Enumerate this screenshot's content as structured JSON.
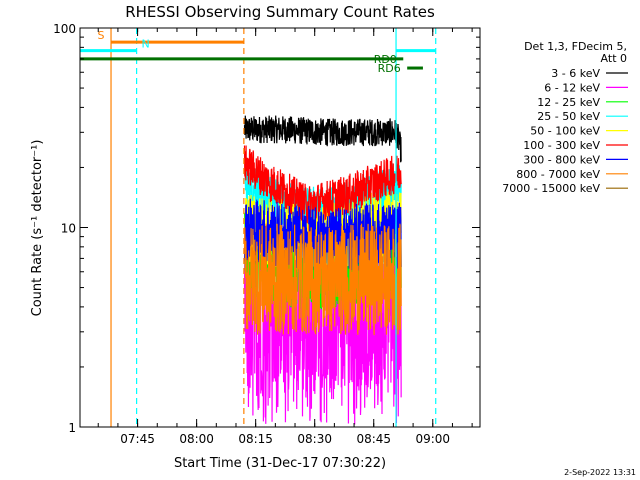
{
  "chart_data": {
    "type": "line",
    "title": "RHESSI Observing Summary Count Rates",
    "xlabel": "Start Time (31-Dec-17 07:30:22)",
    "ylabel": "Count Rate (s⁻¹ detector⁻¹)",
    "y_scale": "log",
    "ylim": [
      1,
      100
    ],
    "xlim": [
      "07:30:22",
      "09:12:00"
    ],
    "x_ticks": [
      "07:45",
      "08:00",
      "08:15",
      "08:30",
      "08:45",
      "09:00"
    ],
    "y_ticks": [
      "1",
      "10",
      "100"
    ],
    "legend_header": [
      "Det 1,3, FDecim 5,",
      "Att 0"
    ],
    "legend_position": "right",
    "data_start": "08:12:10",
    "data_end": "08:52:00",
    "series": [
      {
        "name": "3 - 6 keV",
        "color": "#000000",
        "profile": [
          [
            0,
            31
          ],
          [
            0.25,
            31
          ],
          [
            0.5,
            30
          ],
          [
            0.75,
            30
          ],
          [
            0.97,
            30
          ],
          [
            1,
            24
          ]
        ],
        "spread": 0.07
      },
      {
        "name": "6 - 12 keV",
        "color": "#ff00ff",
        "profile": [
          [
            0,
            3.8
          ],
          [
            0.5,
            3.8
          ],
          [
            1,
            3.8
          ]
        ],
        "spread": 0.35
      },
      {
        "name": "12 - 25 keV",
        "color": "#00ff00",
        "profile": [
          [
            0,
            7.5
          ],
          [
            0.2,
            6.5
          ],
          [
            0.45,
            6.0
          ],
          [
            0.7,
            6.5
          ],
          [
            1,
            7.2
          ]
        ],
        "spread": 0.2
      },
      {
        "name": "25 - 50 keV",
        "color": "#00ffff",
        "profile": [
          [
            0,
            16
          ],
          [
            0.15,
            14
          ],
          [
            0.4,
            12
          ],
          [
            0.7,
            13
          ],
          [
            0.95,
            16
          ],
          [
            1,
            16
          ]
        ],
        "spread": 0.12
      },
      {
        "name": "50 - 100 keV",
        "color": "#ffff00",
        "profile": [
          [
            0,
            10
          ],
          [
            0.3,
            9
          ],
          [
            0.5,
            8.5
          ],
          [
            0.7,
            9.5
          ],
          [
            1,
            10.5
          ]
        ],
        "spread": 0.18
      },
      {
        "name": "100 - 300 keV",
        "color": "#ff0000",
        "profile": [
          [
            0,
            21
          ],
          [
            0.15,
            17
          ],
          [
            0.4,
            13
          ],
          [
            0.65,
            14.5
          ],
          [
            0.85,
            17
          ],
          [
            1,
            19
          ]
        ],
        "spread": 0.1
      },
      {
        "name": "300 - 800 keV",
        "color": "#0000ff",
        "profile": [
          [
            0,
            10
          ],
          [
            0.25,
            9
          ],
          [
            0.5,
            8.5
          ],
          [
            0.75,
            9
          ],
          [
            1,
            9
          ]
        ],
        "spread": 0.17
      },
      {
        "name": "800 - 7000 keV",
        "color": "#ff8000",
        "profile": [
          [
            0,
            5.5
          ],
          [
            0.5,
            5.5
          ],
          [
            1,
            5.5
          ]
        ],
        "spread": 0.28
      },
      {
        "name": "7000 - 15000 keV",
        "color": "#996600",
        "profile": [],
        "spread": 0
      }
    ],
    "annotations": [
      {
        "label": "S",
        "color": "#ff8000",
        "start": "07:38:15",
        "end": "08:12:00",
        "level": 85
      },
      {
        "label": "N",
        "color": "#00ffff",
        "start": "07:30:22",
        "end": "07:44:45",
        "level": 77
      },
      {
        "label": "RD0",
        "color": "#007000",
        "start": "07:30:22",
        "end": "08:52:30",
        "level": 70
      },
      {
        "label": "RD6",
        "color": "#007000",
        "start": "08:53:30",
        "end": "08:57:30",
        "level": 63
      }
    ],
    "vlines": [
      {
        "time": "07:38:15",
        "color": "#ff8000",
        "style": "solid"
      },
      {
        "time": "07:44:45",
        "color": "#00ffff",
        "style": "dashed"
      },
      {
        "time": "08:12:00",
        "color": "#ff8000",
        "style": "dashed"
      },
      {
        "time": "08:50:40",
        "color": "#00ffff",
        "style": "solid"
      },
      {
        "time": "09:00:45",
        "color": "#00ffff",
        "style": "dashed"
      }
    ],
    "eclipse_bars": [
      {
        "start": "08:50:40",
        "end": "09:00:45",
        "color": "#00ffff",
        "level": 77
      }
    ]
  },
  "footer_date": "2-Sep-2022 13:31"
}
